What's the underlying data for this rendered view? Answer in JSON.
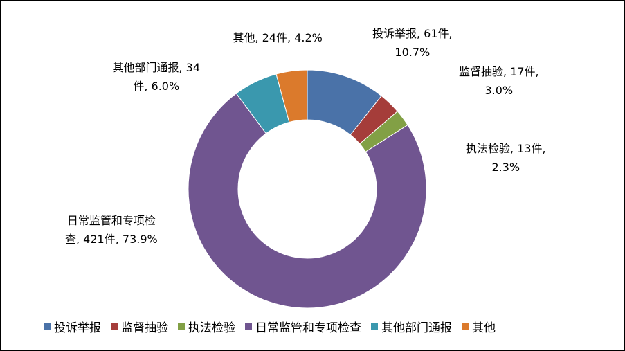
{
  "chart_data": {
    "type": "pie",
    "donut": true,
    "start": "12 o'clock, clockwise",
    "legend_position": "bottom",
    "slices": [
      {
        "name": "投诉举报",
        "count": 61,
        "percent": 10.7,
        "label_lines": [
          "投诉举报, 61件,",
          "10.7%"
        ],
        "color": "#4a72a8"
      },
      {
        "name": "监督抽验",
        "count": 17,
        "percent": 3.0,
        "label_lines": [
          "监督抽验, 17件,",
          "3.0%"
        ],
        "color": "#a53d3a"
      },
      {
        "name": "执法检验",
        "count": 13,
        "percent": 2.3,
        "label_lines": [
          "执法检验, 13件,",
          "2.3%"
        ],
        "color": "#82a045"
      },
      {
        "name": "日常监管和专项检查",
        "count": 421,
        "percent": 73.9,
        "label_lines": [
          "日常监管和专项检",
          "查, 421件, 73.9%"
        ],
        "color": "#705590"
      },
      {
        "name": "其他部门通报",
        "count": 34,
        "percent": 6.0,
        "label_lines": [
          "其他部门通报, 34",
          "件, 6.0%"
        ],
        "color": "#3a98ae"
      },
      {
        "name": "其他",
        "count": 24,
        "percent": 4.2,
        "label_lines": [
          "其他, 24件, 4.2%"
        ],
        "color": "#db7a2c"
      }
    ]
  }
}
